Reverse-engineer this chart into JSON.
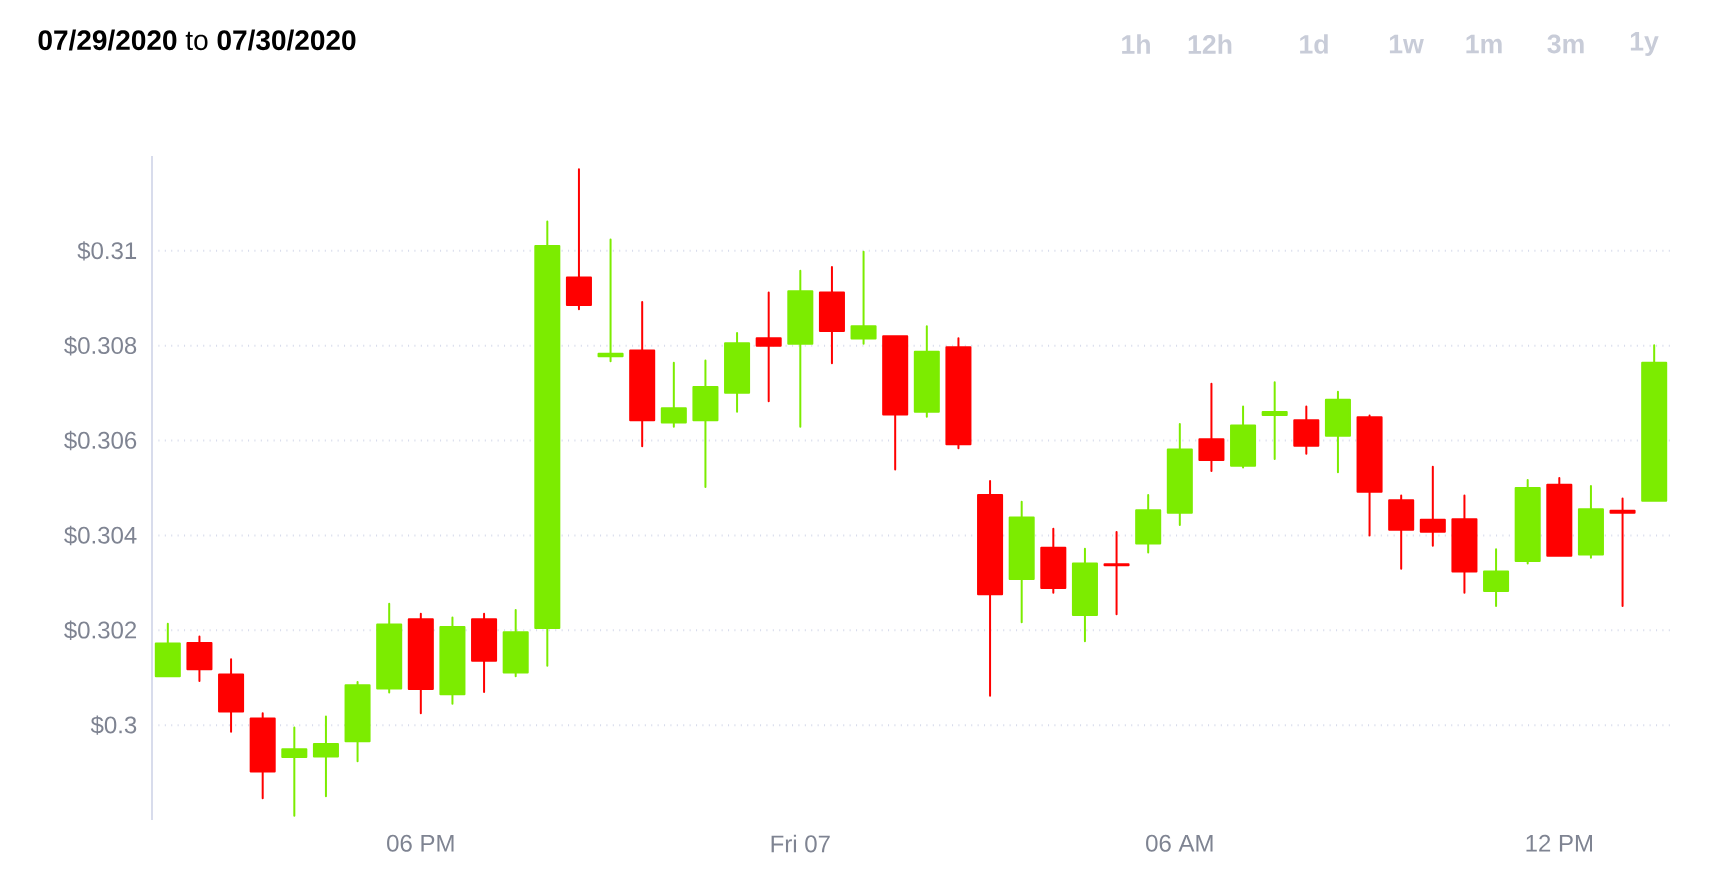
{
  "chart_data": {
    "type": "candlestick",
    "title": "**07/29/2020** to **07/30/2020**",
    "annotations": [
      "1h",
      "12h",
      "1d",
      "1w",
      "1m",
      "3m",
      "1y"
    ],
    "categories": [
      null,
      null,
      null,
      null,
      null,
      null,
      null,
      null,
      "06 PM",
      null,
      null,
      null,
      null,
      null,
      null,
      null,
      null,
      null,
      null,
      null,
      "Fri 07",
      null,
      null,
      null,
      null,
      null,
      null,
      null,
      null,
      null,
      null,
      null,
      "06 AM",
      null,
      null,
      null,
      null,
      null,
      null,
      null,
      null,
      null,
      null,
      null,
      "12 PM",
      null,
      null,
      null
    ],
    "ohlc": [
      [
        0.30103,
        0.30214,
        0.30103,
        0.30172
      ],
      [
        0.30173,
        0.30187,
        0.30093,
        0.30118
      ],
      [
        0.30107,
        0.30139,
        0.29986,
        0.30029
      ],
      [
        0.30014,
        0.30025,
        0.29846,
        0.29902
      ],
      [
        0.29933,
        0.29995,
        0.29809,
        0.29949
      ],
      [
        0.29934,
        0.30018,
        0.2985,
        0.2996
      ],
      [
        0.29966,
        0.30091,
        0.29924,
        0.30084
      ],
      [
        0.30077,
        0.30256,
        0.30069,
        0.30212
      ],
      [
        0.30223,
        0.30235,
        0.30025,
        0.30076
      ],
      [
        0.30065,
        0.30227,
        0.30045,
        0.30207
      ],
      [
        0.30223,
        0.30235,
        0.3007,
        0.30136
      ],
      [
        0.30111,
        0.30243,
        0.30103,
        0.30196
      ],
      [
        0.30205,
        0.31062,
        0.30125,
        0.3101
      ],
      [
        0.30944,
        0.31172,
        0.30877,
        0.30886
      ],
      [
        0.30778,
        0.31024,
        0.30767,
        0.30783
      ],
      [
        0.3079,
        0.30892,
        0.30588,
        0.30643
      ],
      [
        0.30638,
        0.30764,
        0.30629,
        0.30668
      ],
      [
        0.30643,
        0.30769,
        0.30502,
        0.30713
      ],
      [
        0.30701,
        0.30827,
        0.30661,
        0.30805
      ],
      [
        0.30816,
        0.30912,
        0.30683,
        0.308
      ],
      [
        0.30804,
        0.30958,
        0.30629,
        0.30915
      ],
      [
        0.30912,
        0.30966,
        0.30763,
        0.30831
      ],
      [
        0.30815,
        0.30998,
        0.30804,
        0.30841
      ],
      [
        0.3082,
        0.3082,
        0.30539,
        0.30655
      ],
      [
        0.30661,
        0.30841,
        0.3065,
        0.30787
      ],
      [
        0.30797,
        0.30816,
        0.30584,
        0.30592
      ],
      [
        0.30485,
        0.30515,
        0.30062,
        0.30276
      ],
      [
        0.30308,
        0.30471,
        0.30217,
        0.30438
      ],
      [
        0.30374,
        0.30414,
        0.30279,
        0.30289
      ],
      [
        0.30232,
        0.30372,
        0.30177,
        0.30341
      ],
      [
        0.30339,
        0.30407,
        0.30234,
        0.30337
      ],
      [
        0.30383,
        0.30485,
        0.30364,
        0.30453
      ],
      [
        0.30448,
        0.30635,
        0.30422,
        0.30581
      ],
      [
        0.30603,
        0.3072,
        0.30536,
        0.30559
      ],
      [
        0.30547,
        0.30672,
        0.30543,
        0.30632
      ],
      [
        0.30654,
        0.30723,
        0.30561,
        0.3066
      ],
      [
        0.30643,
        0.30672,
        0.30572,
        0.30589
      ],
      [
        0.3061,
        0.30703,
        0.30533,
        0.30686
      ],
      [
        0.30649,
        0.30653,
        0.304,
        0.30492
      ],
      [
        0.30474,
        0.30484,
        0.3033,
        0.30412
      ],
      [
        0.30433,
        0.30545,
        0.30378,
        0.30408
      ],
      [
        0.30434,
        0.30484,
        0.30279,
        0.30324
      ],
      [
        0.30283,
        0.30371,
        0.30251,
        0.30324
      ],
      [
        0.30346,
        0.30517,
        0.30341,
        0.305
      ],
      [
        0.30507,
        0.30521,
        0.30357,
        0.30357
      ],
      [
        0.3036,
        0.30504,
        0.30353,
        0.30455
      ],
      [
        0.30452,
        0.30478,
        0.30251,
        0.30448
      ],
      [
        0.30473,
        0.30801,
        0.30473,
        0.30764
      ]
    ],
    "colors": [
      "#7cec00",
      "#ff0000",
      "#ff0000",
      "#ff0000",
      "#7cec00",
      "#7cec00",
      "#7cec00",
      "#7cec00",
      "#ff0000",
      "#7cec00",
      "#ff0000",
      "#7cec00",
      "#7cec00",
      "#ff0000",
      "#7cec00",
      "#ff0000",
      "#7cec00",
      "#7cec00",
      "#7cec00",
      "#ff0000",
      "#7cec00",
      "#ff0000",
      "#7cec00",
      "#ff0000",
      "#7cec00",
      "#ff0000",
      "#ff0000",
      "#7cec00",
      "#ff0000",
      "#7cec00",
      "#ff0000",
      "#7cec00",
      "#7cec00",
      "#ff0000",
      "#7cec00",
      "#7cec00",
      "#ff0000",
      "#7cec00",
      "#ff0000",
      "#ff0000",
      "#ff0000",
      "#ff0000",
      "#7cec00",
      "#7cec00",
      "#ff0000",
      "#7cec00",
      "#ff0000",
      "#7cec00"
    ],
    "yticks": [
      {
        "value": 0.3,
        "label": "$0.3"
      },
      {
        "value": 0.302,
        "label": "$0.302"
      },
      {
        "value": 0.304,
        "label": "$0.304"
      },
      {
        "value": 0.306,
        "label": "$0.306"
      },
      {
        "value": 0.308,
        "label": "$0.308"
      },
      {
        "value": 0.31,
        "label": "$0.31"
      }
    ],
    "ylim": [
      0.298,
      0.312
    ],
    "grid": "y"
  }
}
